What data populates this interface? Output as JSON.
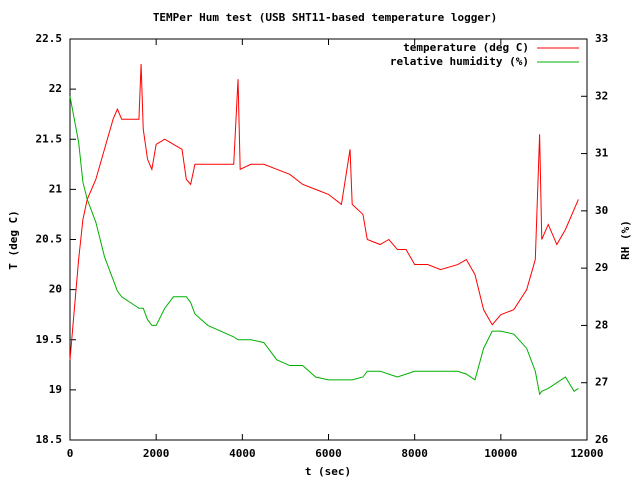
{
  "chart_data": {
    "type": "line",
    "title": "TEMPer Hum test (USB SHT11-based temperature logger)",
    "xlabel": "t (sec)",
    "ylabel": "T (deg C)",
    "y2label": "RH (%)",
    "x": [
      0,
      100,
      200,
      300,
      400,
      600,
      800,
      1000,
      1100,
      1200,
      1400,
      1600,
      1650,
      1700,
      1800,
      1900,
      2000,
      2200,
      2400,
      2600,
      2700,
      2800,
      2900,
      3200,
      3500,
      3800,
      3900,
      3950,
      4200,
      4500,
      4800,
      5100,
      5400,
      5700,
      6000,
      6300,
      6500,
      6550,
      6800,
      6900,
      7200,
      7400,
      7600,
      7800,
      8000,
      8300,
      8600,
      9000,
      9200,
      9400,
      9600,
      9800,
      10000,
      10300,
      10600,
      10800,
      10900,
      10950,
      11100,
      11300,
      11500,
      11700,
      11800
    ],
    "series": [
      {
        "name": "temperature (deg C)",
        "color": "#ff0000",
        "axis": "y",
        "values": [
          19.3,
          19.8,
          20.3,
          20.7,
          20.9,
          21.1,
          21.4,
          21.7,
          21.8,
          21.7,
          21.7,
          21.7,
          22.25,
          21.6,
          21.3,
          21.2,
          21.45,
          21.5,
          21.45,
          21.4,
          21.1,
          21.05,
          21.25,
          21.25,
          21.25,
          21.25,
          22.1,
          21.2,
          21.25,
          21.25,
          21.2,
          21.15,
          21.05,
          21.0,
          20.95,
          20.85,
          21.4,
          20.85,
          20.75,
          20.5,
          20.45,
          20.5,
          20.4,
          20.4,
          20.25,
          20.25,
          20.2,
          20.25,
          20.3,
          20.15,
          19.8,
          19.65,
          19.75,
          19.8,
          20.0,
          20.3,
          21.55,
          20.5,
          20.65,
          20.45,
          20.6,
          20.8,
          20.9
        ]
      },
      {
        "name": "relative humidity (%)",
        "color": "#00b000",
        "axis": "y2",
        "values": [
          32.0,
          31.6,
          31.2,
          30.5,
          30.2,
          29.8,
          29.2,
          28.8,
          28.6,
          28.5,
          28.4,
          28.3,
          28.3,
          28.3,
          28.1,
          28.0,
          28.0,
          28.3,
          28.5,
          28.5,
          28.5,
          28.4,
          28.2,
          28.0,
          27.9,
          27.8,
          27.75,
          27.75,
          27.75,
          27.7,
          27.4,
          27.3,
          27.3,
          27.1,
          27.05,
          27.05,
          27.05,
          27.05,
          27.1,
          27.2,
          27.2,
          27.15,
          27.1,
          27.15,
          27.2,
          27.2,
          27.2,
          27.2,
          27.15,
          27.05,
          27.6,
          27.9,
          27.9,
          27.85,
          27.6,
          27.2,
          26.8,
          26.85,
          26.9,
          27.0,
          27.1,
          26.85,
          26.9
        ]
      }
    ],
    "xlim": [
      0,
      12000
    ],
    "xticks": [
      0,
      2000,
      4000,
      6000,
      8000,
      10000,
      12000
    ],
    "ylim": [
      18.5,
      22.5
    ],
    "yticks": [
      18.5,
      19,
      19.5,
      20,
      20.5,
      21,
      21.5,
      22,
      22.5
    ],
    "y2lim": [
      26,
      33
    ],
    "y2ticks": [
      26,
      27,
      28,
      29,
      30,
      31,
      32,
      33
    ],
    "legend": "top right"
  }
}
